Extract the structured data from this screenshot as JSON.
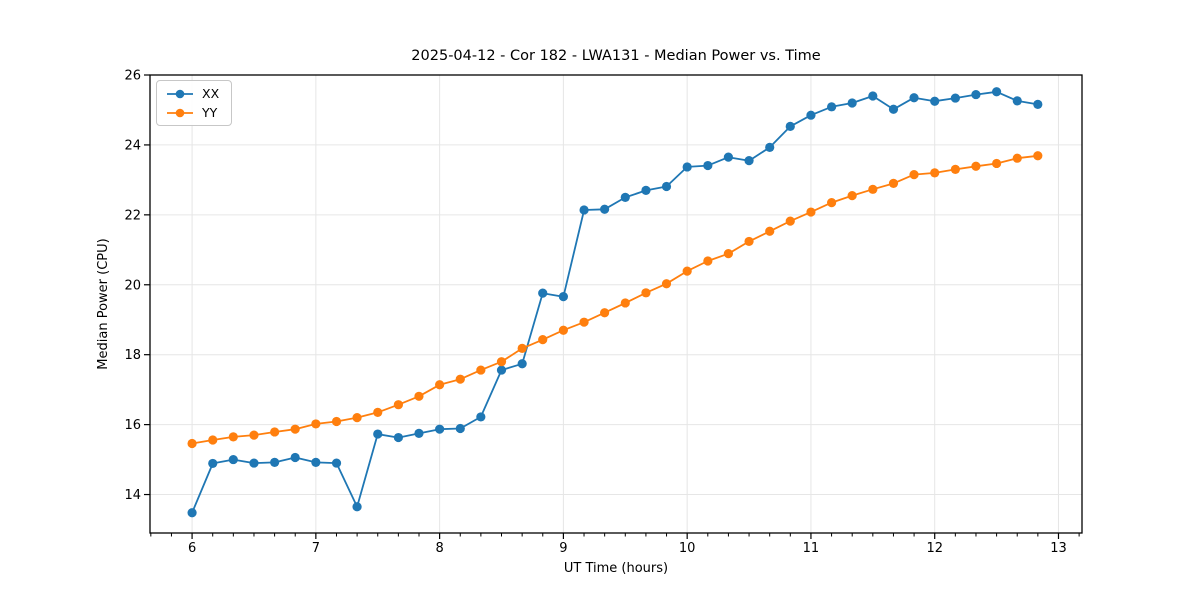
{
  "chart_data": {
    "type": "line",
    "title": "2025-04-12 - Cor 182 - LWA131 - Median Power vs. Time",
    "xlabel": "UT Time (hours)",
    "ylabel": "Median Power (CPU)",
    "xlim": [
      5.66,
      13.19
    ],
    "ylim": [
      12.9,
      26.0
    ],
    "x_ticks": [
      6,
      7,
      8,
      9,
      10,
      11,
      12,
      13
    ],
    "y_ticks": [
      14,
      16,
      18,
      20,
      22,
      24,
      26
    ],
    "x_minor_tick_step": 0.1667,
    "grid": true,
    "legend_position": "upper-left",
    "x": [
      6.0,
      6.167,
      6.333,
      6.5,
      6.667,
      6.833,
      7.0,
      7.167,
      7.333,
      7.5,
      7.667,
      7.833,
      8.0,
      8.167,
      8.333,
      8.5,
      8.667,
      8.833,
      9.0,
      9.167,
      9.333,
      9.5,
      9.667,
      9.833,
      10.0,
      10.167,
      10.333,
      10.5,
      10.667,
      10.833,
      11.0,
      11.167,
      11.333,
      11.5,
      11.667,
      11.833,
      12.0,
      12.167,
      12.333,
      12.5,
      12.667,
      12.833
    ],
    "series": [
      {
        "name": "XX",
        "color": "#1f77b4",
        "values": [
          13.48,
          14.89,
          15.0,
          14.9,
          14.92,
          15.06,
          14.92,
          14.9,
          13.65,
          15.73,
          15.63,
          15.75,
          15.87,
          15.89,
          16.22,
          17.56,
          17.74,
          19.76,
          19.66,
          22.14,
          22.16,
          22.5,
          22.7,
          22.81,
          23.37,
          23.41,
          23.65,
          23.55,
          23.93,
          24.53,
          24.85,
          25.09,
          25.2,
          25.4,
          25.02,
          25.35,
          25.25,
          25.34,
          25.44,
          25.52,
          25.26,
          25.16
        ]
      },
      {
        "name": "YY",
        "color": "#ff7f0e",
        "values": [
          15.46,
          15.56,
          15.65,
          15.7,
          15.79,
          15.87,
          16.02,
          16.09,
          16.2,
          16.35,
          16.57,
          16.81,
          17.14,
          17.3,
          17.56,
          17.8,
          18.18,
          18.43,
          18.7,
          18.93,
          19.2,
          19.48,
          19.77,
          20.03,
          20.39,
          20.68,
          20.89,
          21.24,
          21.53,
          21.82,
          22.08,
          22.35,
          22.55,
          22.73,
          22.9,
          23.15,
          23.2,
          23.3,
          23.39,
          23.47,
          23.62,
          23.69
        ]
      }
    ]
  },
  "style": {
    "grid_color": "#e6e6e6",
    "spine_color": "#000000",
    "tick_color": "#000000",
    "text_color": "#000000",
    "background": "#ffffff"
  }
}
